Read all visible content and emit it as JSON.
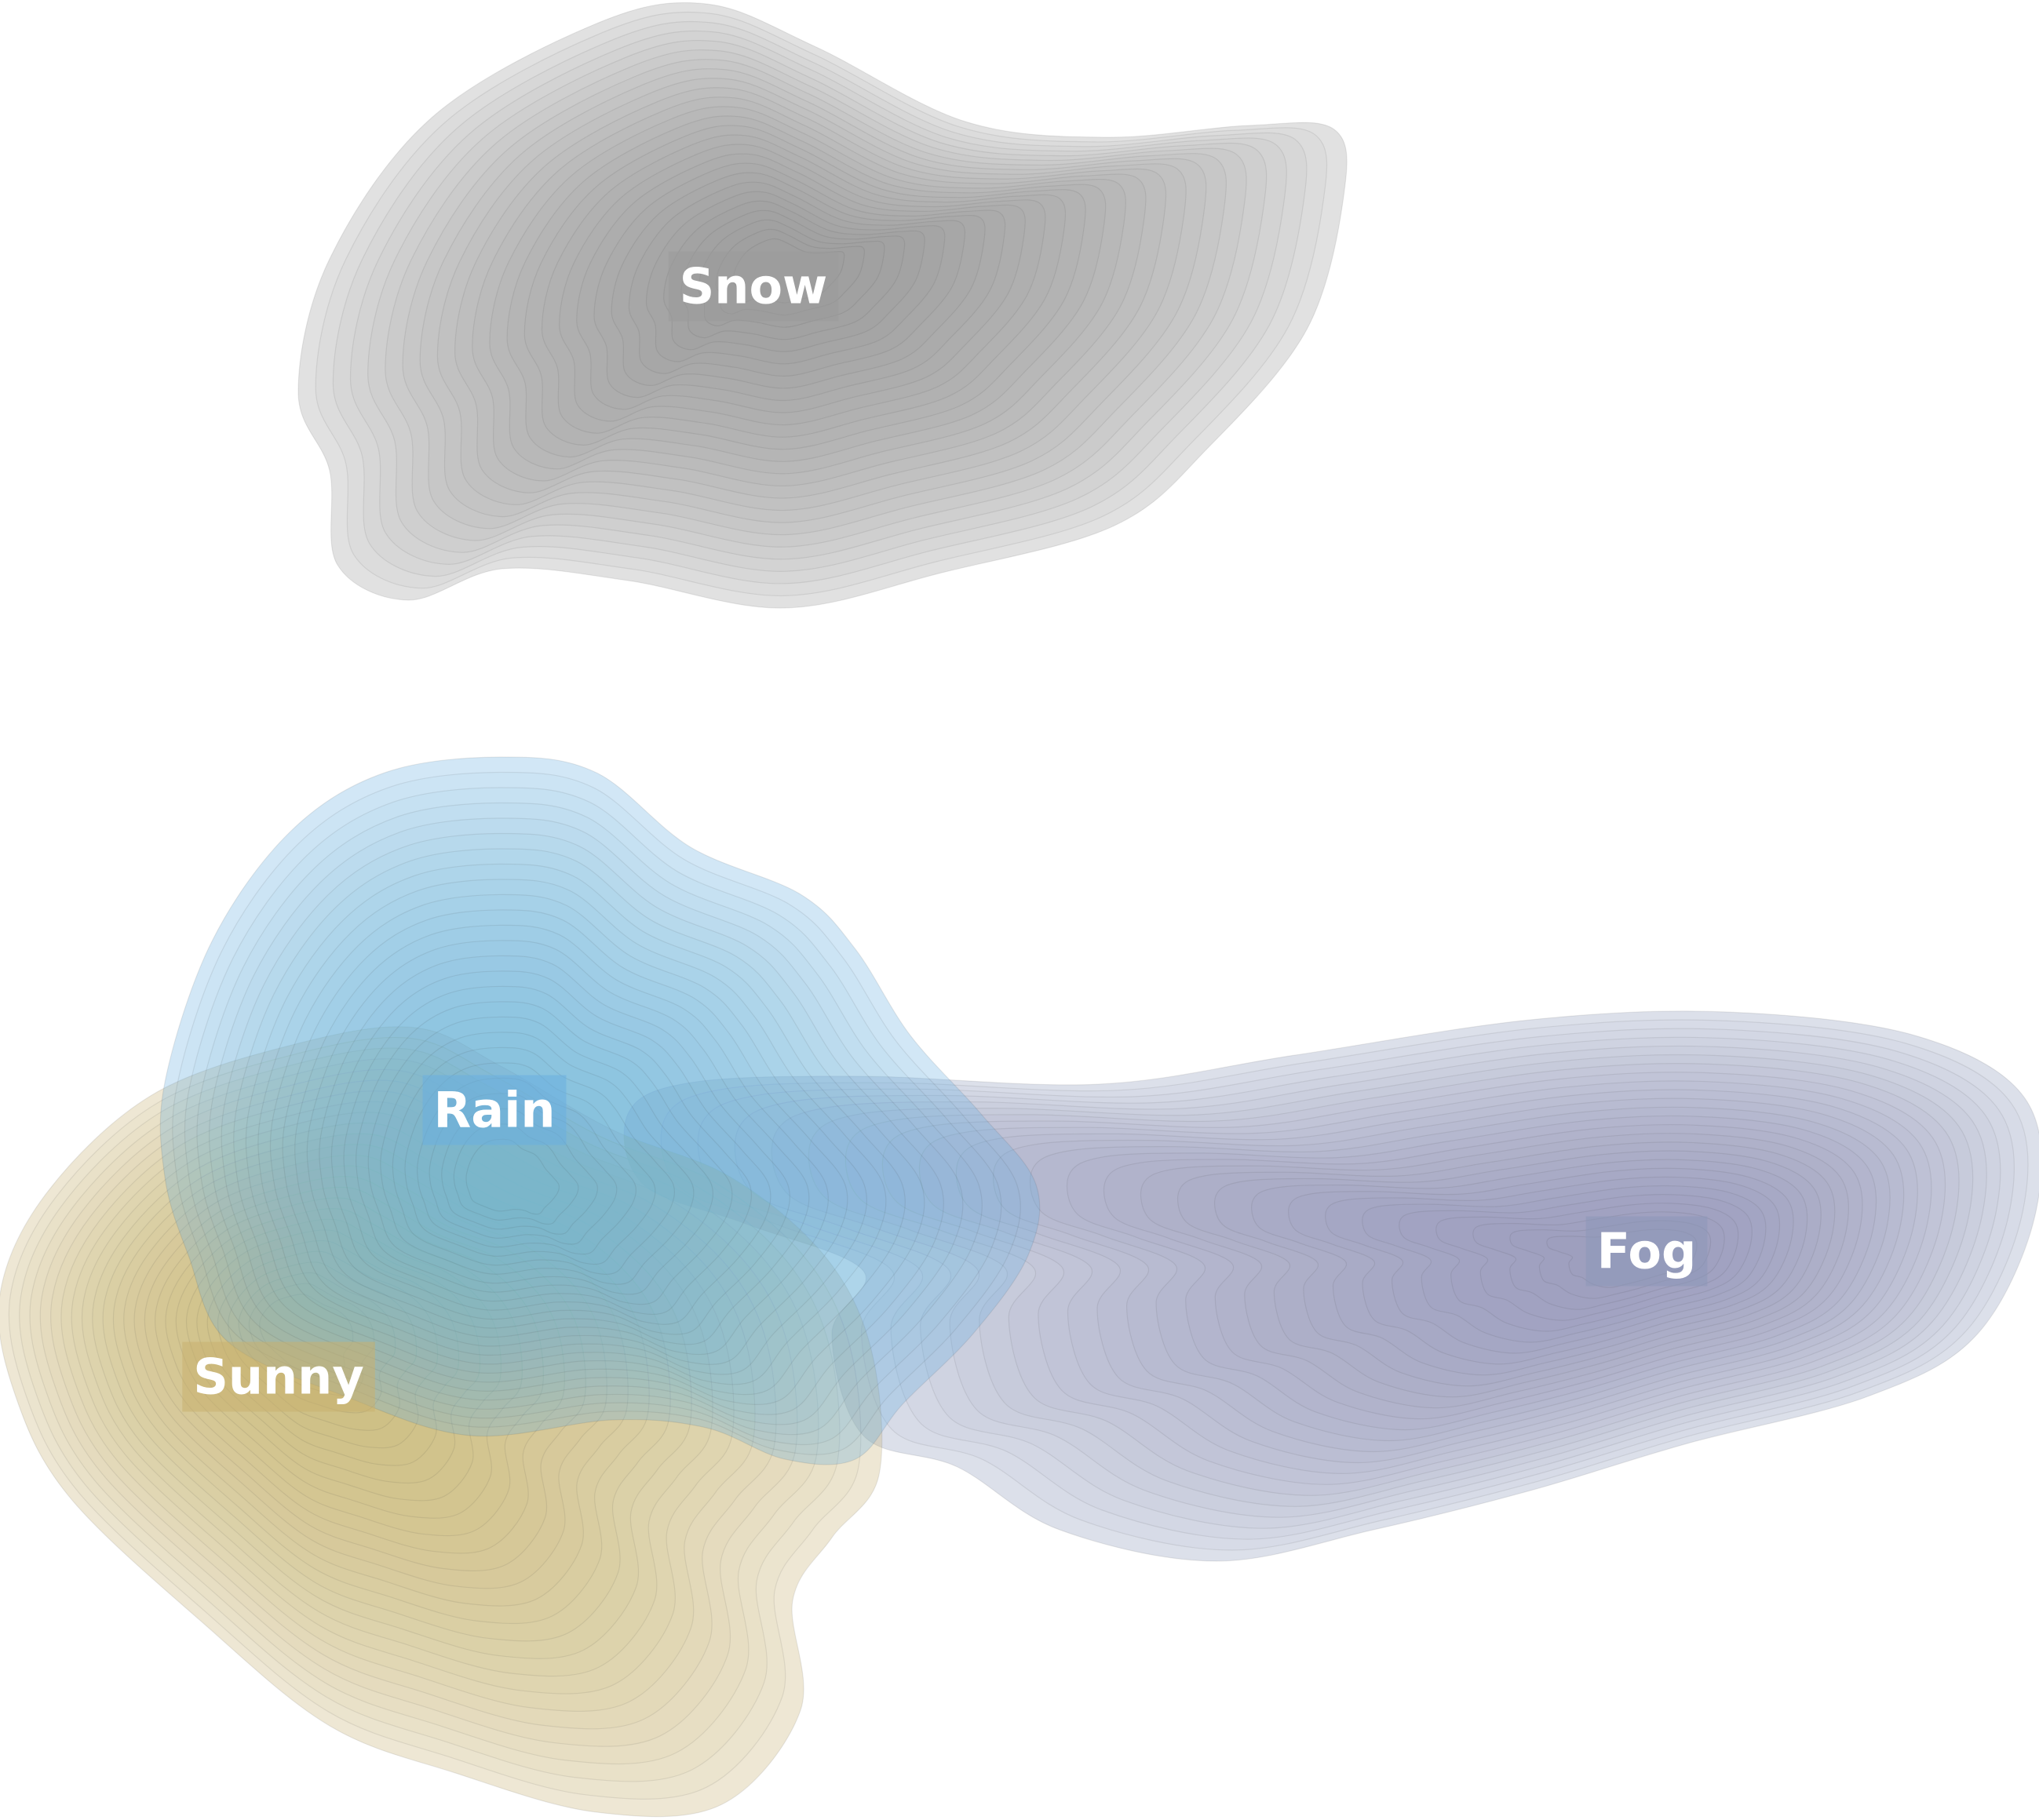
{
  "chart_data": {
    "type": "density-contour",
    "title": "",
    "xlabel": "",
    "ylabel": "",
    "grid": false,
    "legend": "none",
    "series": [
      {
        "name": "Snow",
        "color": "#9a9a9a"
      },
      {
        "name": "Rain",
        "color": "#6aaee0"
      },
      {
        "name": "Fog",
        "color": "#8c98b8"
      },
      {
        "name": "Sunny",
        "color": "#c8b070"
      }
    ]
  }
}
